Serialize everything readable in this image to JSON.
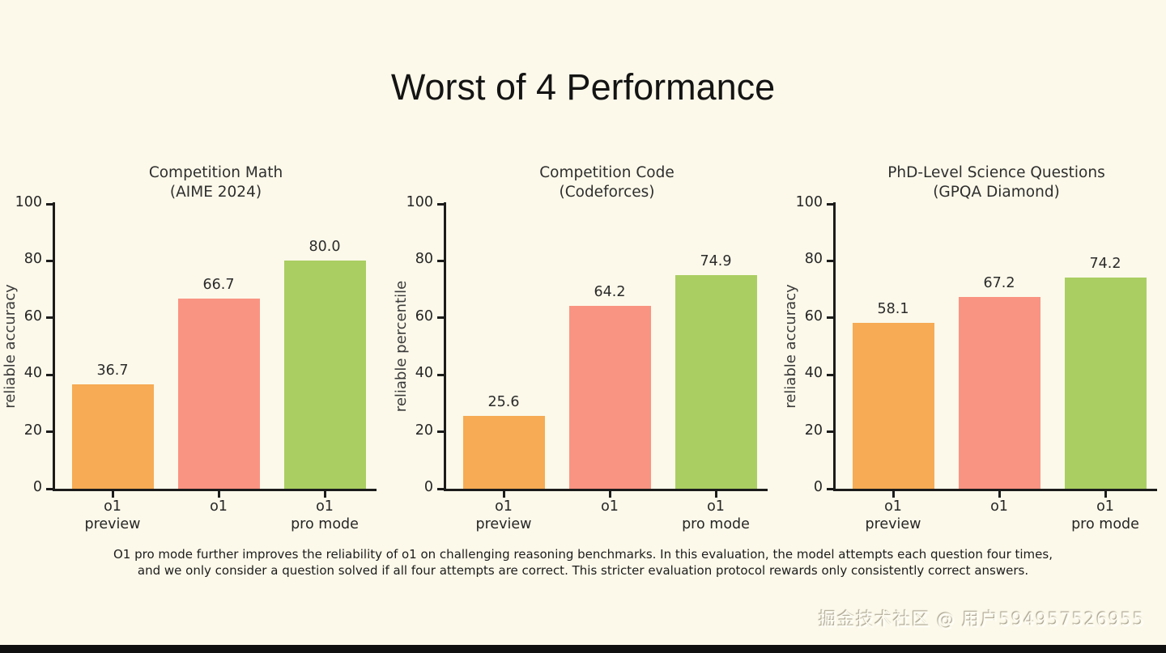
{
  "page": {
    "title": "Worst of 4 Performance",
    "caption_line1": "O1 pro mode further improves the reliability of o1 on challenging reasoning benchmarks. In this evaluation, the model attempts each question four times,",
    "caption_line2": "and we only consider a question solved if all four attempts are correct. This stricter evaluation protocol rewards only consistently correct answers.",
    "watermark": "掘金技术社区 @ 用户594957526955",
    "background_color": "#FCF9EA",
    "bottom_bar_color": "#101010"
  },
  "colors": {
    "bar_o1_preview": "#F6AB54",
    "bar_o1": "#FA9482",
    "bar_o1_pro_mode": "#AACE62",
    "axis": "#1C1C1C",
    "text": "#262626"
  },
  "chart_data": [
    {
      "type": "bar",
      "slug": "competition-math",
      "title_line1": "Competition Math",
      "title_line2": "(AIME 2024)",
      "ylabel": "reliable accuracy",
      "categories": [
        [
          "o1",
          "preview"
        ],
        [
          "o1"
        ],
        [
          "o1",
          "pro mode"
        ]
      ],
      "values": [
        36.7,
        66.7,
        80.0
      ],
      "value_labels": [
        "36.7",
        "66.7",
        "80.0"
      ],
      "bar_colors": [
        "#F6AB54",
        "#FA9482",
        "#AACE62"
      ],
      "ylim": [
        0,
        100
      ],
      "yticks": [
        0,
        20,
        40,
        60,
        80,
        100
      ],
      "grid": false,
      "legend": false
    },
    {
      "type": "bar",
      "slug": "competition-code",
      "title_line1": "Competition Code",
      "title_line2": "(Codeforces)",
      "ylabel": "reliable percentile",
      "categories": [
        [
          "o1",
          "preview"
        ],
        [
          "o1"
        ],
        [
          "o1",
          "pro mode"
        ]
      ],
      "values": [
        25.6,
        64.2,
        74.9
      ],
      "value_labels": [
        "25.6",
        "64.2",
        "74.9"
      ],
      "bar_colors": [
        "#F6AB54",
        "#FA9482",
        "#AACE62"
      ],
      "ylim": [
        0,
        100
      ],
      "yticks": [
        0,
        20,
        40,
        60,
        80,
        100
      ],
      "grid": false,
      "legend": false
    },
    {
      "type": "bar",
      "slug": "phd-level-science-questions",
      "title_line1": "PhD-Level Science Questions",
      "title_line2": "(GPQA Diamond)",
      "ylabel": "reliable accuracy",
      "categories": [
        [
          "o1",
          "preview"
        ],
        [
          "o1"
        ],
        [
          "o1",
          "pro mode"
        ]
      ],
      "values": [
        58.1,
        67.2,
        74.2
      ],
      "value_labels": [
        "58.1",
        "67.2",
        "74.2"
      ],
      "bar_colors": [
        "#F6AB54",
        "#FA9482",
        "#AACE62"
      ],
      "ylim": [
        0,
        100
      ],
      "yticks": [
        0,
        20,
        40,
        60,
        80,
        100
      ],
      "grid": false,
      "legend": false
    }
  ]
}
